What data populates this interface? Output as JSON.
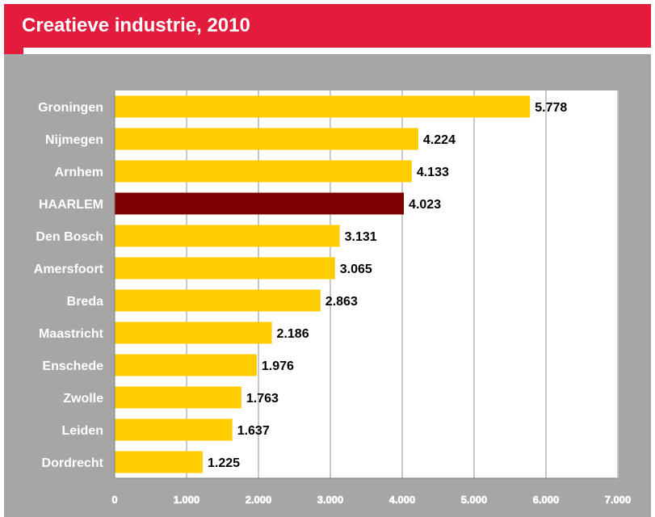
{
  "title": "Creatieve industrie, 2010",
  "colors": {
    "header": "#e31b3c",
    "chart_background": "#a6a6a6",
    "plot_background": "#ffffff",
    "bar": "#ffcc00",
    "highlight_bar": "#7f0000",
    "gridline": "#c8c8c8"
  },
  "chart_data": {
    "type": "bar",
    "orientation": "horizontal",
    "categories": [
      "Groningen",
      "Nijmegen",
      "Arnhem",
      "HAARLEM",
      "Den Bosch",
      "Amersfoort",
      "Breda",
      "Maastricht",
      "Enschede",
      "Zwolle",
      "Leiden",
      "Dordrecht"
    ],
    "values": [
      5778,
      4224,
      4133,
      4023,
      3131,
      3065,
      2863,
      2186,
      1976,
      1763,
      1637,
      1225
    ],
    "value_labels": [
      "5.778",
      "4.224",
      "4.133",
      "4.023",
      "3.131",
      "3.065",
      "2.863",
      "2.186",
      "1.976",
      "1.763",
      "1.637",
      "1.225"
    ],
    "highlight": "HAARLEM",
    "xlim": [
      0,
      7000
    ],
    "xticks": [
      0,
      1000,
      2000,
      3000,
      4000,
      5000,
      6000,
      7000
    ],
    "xtick_labels": [
      "0",
      "1.000",
      "2.000",
      "3.000",
      "4.000",
      "5.000",
      "6.000",
      "7.000"
    ],
    "xlabel": "",
    "ylabel": "",
    "grid": "vertical",
    "legend": "none"
  }
}
